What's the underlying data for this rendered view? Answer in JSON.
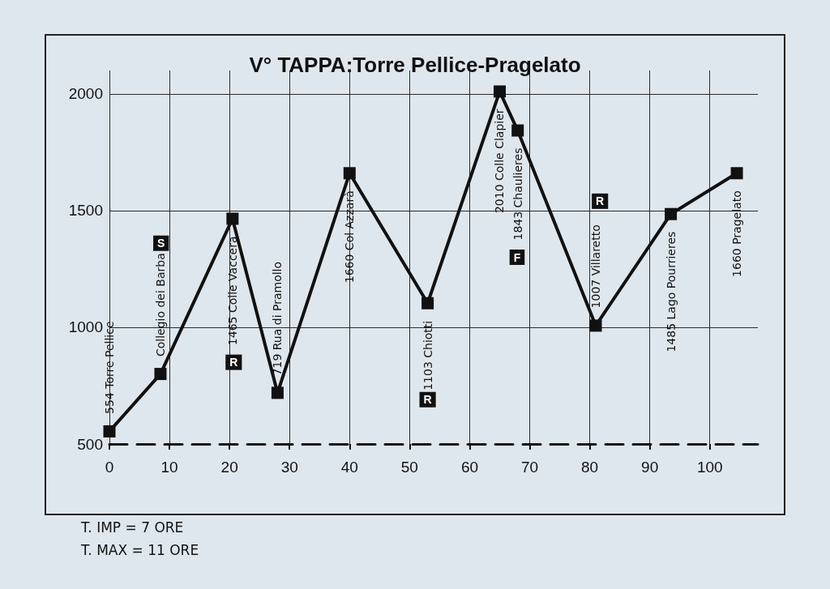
{
  "chart_data": {
    "type": "line",
    "title": "V° TAPPA:Torre Pellice-Pragelato",
    "x": [
      0,
      8.5,
      20.5,
      28,
      40,
      53,
      65,
      68,
      81,
      93.5,
      104.5
    ],
    "values": [
      554,
      800,
      1465,
      719,
      1660,
      1103,
      2010,
      1843,
      1007,
      1485,
      1660
    ],
    "value_labels": [
      "554 Torre Pellice",
      "Collegio dei Barba",
      "1465 Colle Vaccera",
      "719 Rua di Pramollo",
      "1660 Col Azzarà",
      "1103 Chiotti",
      "2010 Colle Clapier",
      "1843 Chaulieres",
      "1007 Villaretto",
      "1485 Lago Pourrieres",
      "1660 Pragelato"
    ],
    "color": "#111111",
    "marker": "square",
    "grid": true,
    "xlim": [
      0,
      108
    ],
    "xticks": [
      0,
      10,
      20,
      30,
      40,
      50,
      60,
      70,
      80,
      90,
      100
    ],
    "ylim": [
      500,
      2100
    ],
    "yticks": [
      500,
      1000,
      1500,
      2000
    ],
    "annotations": [
      {
        "text": "S",
        "x": 8.6,
        "y": 1360
      },
      {
        "text": "R",
        "x": 20.7,
        "y": 850
      },
      {
        "text": "R",
        "x": 53,
        "y": 690
      },
      {
        "text": "F",
        "x": 67.9,
        "y": 1300
      },
      {
        "text": "R",
        "x": 81.7,
        "y": 1540
      },
      "T. IMP = 7 ORE",
      "T. MAX = 11 ORE"
    ]
  }
}
